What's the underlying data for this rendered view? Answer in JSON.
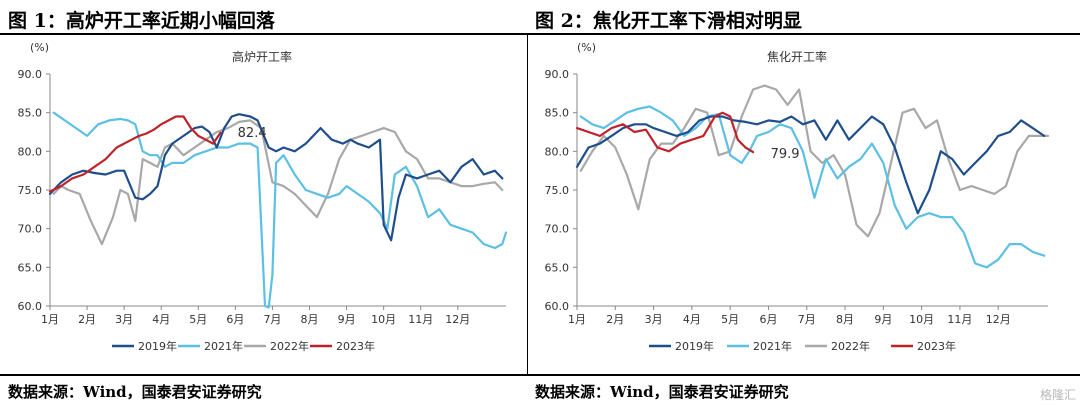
{
  "charts": [
    {
      "title": "图 1：高炉开工率近期小幅回落",
      "source": "数据来源：Wind，国泰君安证券研究"
    },
    {
      "title": "图 2：焦化开工率下滑相对明显",
      "source": "数据来源：Wind，国泰君安证券研究"
    }
  ],
  "watermark": "格隆汇",
  "chart_data": [
    {
      "type": "line",
      "title": "高炉开工率",
      "unit_label": "(%)",
      "ylim": [
        60,
        90
      ],
      "yticks": [
        "60.0",
        "65.0",
        "70.0",
        "75.0",
        "80.0",
        "85.0",
        "90.0"
      ],
      "xlim": [
        1,
        13.3
      ],
      "xticks": [
        "1月",
        "2月",
        "3月",
        "4月",
        "5月",
        "6月",
        "7月",
        "8月",
        "9月",
        "10月",
        "11月",
        "12月"
      ],
      "annotation": {
        "text": "82.4",
        "x": 5.9,
        "y": 82.4
      },
      "series": [
        {
          "name": "2019年",
          "color": "#1f4e8c",
          "x": [
            1.0,
            1.3,
            1.6,
            1.9,
            2.2,
            2.5,
            2.8,
            3.0,
            3.3,
            3.5,
            3.7,
            3.9,
            4.1,
            4.3,
            4.6,
            4.9,
            5.1,
            5.3,
            5.5,
            5.7,
            5.9,
            6.1,
            6.4,
            6.6,
            6.9,
            7.1,
            7.3,
            7.6,
            7.9,
            8.1,
            8.3,
            8.6,
            8.9,
            9.1,
            9.3,
            9.6,
            9.9,
            10.0,
            10.2,
            10.4,
            10.6,
            10.9,
            11.2,
            11.5,
            11.8,
            12.1,
            12.4,
            12.7,
            13.0,
            13.2
          ],
          "y": [
            74.5,
            76.0,
            77.0,
            77.5,
            77.2,
            77.0,
            77.5,
            77.5,
            74.0,
            73.8,
            74.5,
            75.5,
            79.5,
            81.0,
            82.0,
            83.0,
            83.2,
            82.5,
            80.5,
            83.0,
            84.5,
            84.8,
            84.5,
            84.0,
            80.5,
            80.0,
            80.5,
            80.0,
            81.0,
            82.0,
            83.0,
            81.5,
            81.0,
            81.5,
            81.0,
            80.5,
            81.5,
            70.5,
            68.5,
            74.0,
            77.0,
            76.5,
            77.0,
            77.5,
            76.0,
            78.0,
            79.0,
            77.0,
            77.5,
            76.5
          ]
        },
        {
          "name": "2021年",
          "color": "#5bc0e3",
          "x": [
            1.1,
            1.4,
            1.7,
            2.0,
            2.3,
            2.6,
            2.9,
            3.1,
            3.3,
            3.5,
            3.7,
            3.9,
            4.1,
            4.3,
            4.6,
            4.9,
            5.2,
            5.5,
            5.8,
            6.1,
            6.4,
            6.6,
            6.8,
            6.9,
            7.0,
            7.1,
            7.3,
            7.6,
            7.9,
            8.2,
            8.5,
            8.8,
            9.0,
            9.3,
            9.6,
            9.9,
            10.1,
            10.3,
            10.6,
            10.9,
            11.2,
            11.5,
            11.8,
            12.1,
            12.4,
            12.7,
            13.0,
            13.2,
            13.3
          ],
          "y": [
            85.0,
            84.0,
            83.0,
            82.0,
            83.5,
            84.0,
            84.2,
            84.0,
            83.5,
            80.0,
            79.5,
            79.5,
            78.0,
            78.5,
            78.5,
            79.5,
            80.0,
            80.5,
            80.5,
            81.0,
            81.0,
            80.5,
            60.0,
            59.8,
            64.0,
            78.5,
            79.5,
            77.0,
            75.0,
            74.5,
            74.0,
            74.5,
            75.5,
            74.5,
            73.5,
            72.0,
            70.0,
            77.0,
            78.0,
            75.5,
            71.5,
            72.5,
            70.5,
            70.0,
            69.5,
            68.0,
            67.5,
            68.0,
            69.5
          ]
        },
        {
          "name": "2022年",
          "color": "#a8a8a8",
          "x": [
            1.1,
            1.3,
            1.5,
            1.8,
            2.1,
            2.4,
            2.7,
            2.9,
            3.1,
            3.3,
            3.5,
            3.7,
            3.9,
            4.1,
            4.3,
            4.6,
            4.9,
            5.2,
            5.5,
            5.8,
            6.1,
            6.4,
            6.7,
            7.0,
            7.3,
            7.6,
            7.9,
            8.2,
            8.5,
            8.8,
            9.1,
            9.4,
            9.7,
            10.0,
            10.3,
            10.6,
            10.9,
            11.2,
            11.5,
            11.8,
            12.1,
            12.4,
            12.7,
            13.0,
            13.2
          ],
          "y": [
            74.5,
            75.5,
            75.0,
            74.5,
            71.0,
            68.0,
            71.5,
            75.0,
            74.5,
            71.0,
            79.0,
            78.5,
            78.0,
            80.5,
            81.0,
            79.5,
            80.5,
            81.5,
            82.5,
            83.0,
            83.8,
            84.0,
            83.0,
            76.0,
            75.5,
            74.5,
            73.0,
            71.5,
            74.5,
            79.0,
            81.5,
            82.0,
            82.5,
            83.0,
            82.5,
            80.0,
            79.0,
            76.5,
            76.5,
            76.0,
            75.5,
            75.5,
            75.8,
            76.0,
            75.0
          ]
        },
        {
          "name": "2023年",
          "color": "#c0222a",
          "x": [
            1.0,
            1.3,
            1.6,
            1.9,
            2.2,
            2.5,
            2.8,
            3.0,
            3.2,
            3.4,
            3.6,
            3.8,
            4.0,
            4.2,
            4.4,
            4.6,
            4.8,
            5.0,
            5.2,
            5.4,
            5.6
          ],
          "y": [
            74.8,
            75.5,
            76.5,
            77.0,
            78.0,
            79.0,
            80.5,
            81.0,
            81.5,
            82.0,
            82.3,
            82.8,
            83.5,
            84.0,
            84.5,
            84.5,
            83.0,
            82.0,
            81.5,
            81.0,
            82.4
          ]
        }
      ]
    },
    {
      "type": "line",
      "title": "焦化开工率",
      "unit_label": "(%)",
      "ylim": [
        60,
        90
      ],
      "yticks": [
        "60.0",
        "65.0",
        "70.0",
        "75.0",
        "80.0",
        "85.0",
        "90.0"
      ],
      "xlim": [
        1,
        13.3
      ],
      "xticks": [
        "1月",
        "2月",
        "3月",
        "4月",
        "5月",
        "6月",
        "7月",
        "8月",
        "9月",
        "10月",
        "11月",
        "12月"
      ],
      "annotation": {
        "text": "79.9",
        "x": 5.9,
        "y": 79.9
      },
      "series": [
        {
          "name": "2019年",
          "color": "#1f4e8c",
          "x": [
            1.0,
            1.3,
            1.6,
            1.9,
            2.2,
            2.5,
            2.8,
            3.0,
            3.3,
            3.6,
            3.9,
            4.2,
            4.5,
            4.8,
            5.1,
            5.4,
            5.7,
            6.0,
            6.3,
            6.6,
            6.9,
            7.2,
            7.5,
            7.8,
            8.1,
            8.4,
            8.7,
            9.0,
            9.3,
            9.6,
            9.9,
            10.2,
            10.5,
            10.8,
            11.1,
            11.4,
            11.7,
            12.0,
            12.3,
            12.6,
            12.9,
            13.2
          ],
          "y": [
            78.0,
            80.5,
            81.0,
            82.0,
            83.0,
            83.5,
            83.5,
            83.0,
            82.5,
            82.0,
            82.5,
            84.0,
            84.5,
            84.5,
            84.0,
            83.8,
            83.5,
            84.0,
            83.8,
            84.5,
            83.5,
            84.0,
            81.5,
            84.0,
            81.5,
            83.0,
            84.5,
            83.5,
            80.5,
            76.0,
            72.0,
            75.0,
            80.0,
            79.0,
            77.0,
            78.5,
            80.0,
            82.0,
            82.5,
            84.0,
            83.0,
            82.0
          ]
        },
        {
          "name": "2021年",
          "color": "#5bc0e3",
          "x": [
            1.1,
            1.4,
            1.7,
            2.0,
            2.3,
            2.6,
            2.9,
            3.2,
            3.5,
            3.8,
            4.1,
            4.4,
            4.7,
            5.0,
            5.3,
            5.5,
            5.7,
            6.0,
            6.3,
            6.6,
            6.9,
            7.2,
            7.5,
            7.8,
            8.1,
            8.4,
            8.7,
            9.0,
            9.3,
            9.6,
            9.9,
            10.2,
            10.5,
            10.8,
            11.1,
            11.4,
            11.7,
            12.0,
            12.3,
            12.6,
            12.9,
            13.2
          ],
          "y": [
            84.5,
            83.5,
            83.0,
            84.0,
            85.0,
            85.5,
            85.8,
            85.0,
            84.0,
            82.0,
            83.0,
            84.5,
            84.8,
            79.5,
            78.5,
            80.0,
            82.0,
            82.5,
            83.5,
            83.0,
            80.0,
            74.0,
            79.0,
            76.5,
            78.0,
            79.0,
            81.0,
            78.5,
            73.0,
            70.0,
            71.5,
            72.0,
            71.5,
            71.5,
            69.5,
            65.5,
            65.0,
            66.0,
            68.0,
            68.0,
            67.0,
            66.5
          ]
        },
        {
          "name": "2022年",
          "color": "#a8a8a8",
          "x": [
            1.1,
            1.4,
            1.7,
            2.0,
            2.3,
            2.6,
            2.9,
            3.2,
            3.5,
            3.8,
            4.1,
            4.4,
            4.7,
            5.0,
            5.3,
            5.6,
            5.9,
            6.2,
            6.5,
            6.8,
            7.1,
            7.4,
            7.7,
            8.0,
            8.3,
            8.6,
            8.9,
            9.2,
            9.5,
            9.8,
            10.1,
            10.4,
            10.7,
            11.0,
            11.3,
            11.6,
            11.9,
            12.2,
            12.5,
            12.8,
            13.1,
            13.3
          ],
          "y": [
            77.5,
            80.0,
            82.0,
            80.5,
            77.0,
            72.5,
            79.0,
            81.0,
            81.0,
            83.0,
            85.5,
            85.0,
            79.5,
            80.0,
            84.5,
            88.0,
            88.5,
            88.0,
            86.0,
            88.0,
            80.0,
            78.5,
            79.5,
            77.0,
            70.5,
            69.0,
            72.0,
            78.5,
            85.0,
            85.5,
            83.0,
            84.0,
            79.0,
            75.0,
            75.5,
            75.0,
            74.5,
            75.5,
            80.0,
            82.0,
            82.0,
            82.0
          ]
        },
        {
          "name": "2023年",
          "color": "#c0222a",
          "x": [
            1.0,
            1.3,
            1.6,
            1.9,
            2.2,
            2.5,
            2.8,
            3.1,
            3.4,
            3.7,
            4.0,
            4.3,
            4.6,
            4.8,
            5.0,
            5.2,
            5.4,
            5.6
          ],
          "y": [
            83.0,
            82.5,
            82.0,
            83.0,
            83.5,
            82.5,
            82.8,
            80.5,
            80.0,
            81.0,
            81.5,
            82.0,
            84.5,
            85.0,
            84.5,
            81.5,
            80.5,
            79.9
          ]
        }
      ]
    }
  ]
}
